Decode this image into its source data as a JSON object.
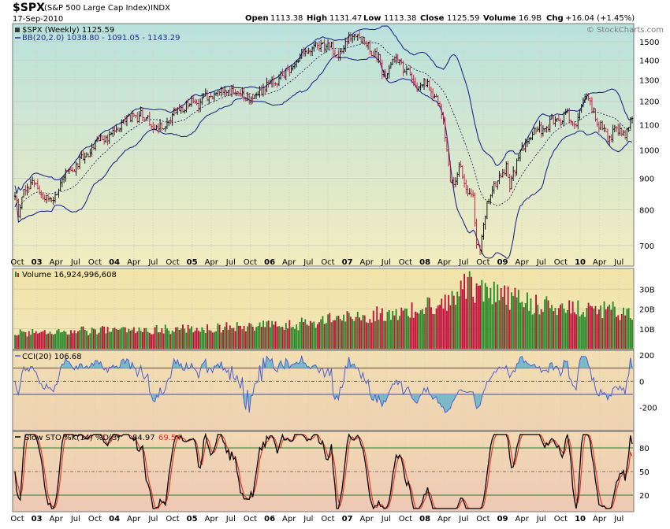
{
  "header": {
    "symbol": "$SPX",
    "name": "(S&P 500 Large Cap Index)",
    "exchange": "INDX",
    "date": "17-Sep-2010",
    "open_label": "Open",
    "open": "1113.38",
    "high_label": "High",
    "high": "1131.47",
    "low_label": "Low",
    "low": "1113.38",
    "close_label": "Close",
    "close": "1125.59",
    "volume_label": "Volume",
    "volume": "16.9B",
    "chg_label": "Chg",
    "chg": "+16.04 (+1.45%)",
    "watermark": "© StockCharts.com"
  },
  "colors": {
    "up": "#2a8a2a",
    "down": "#c0143c",
    "bb": "#1f2a8c",
    "stoch_d": "#e03020",
    "cci_fill": "#78b8c8"
  },
  "chart_data": [
    {
      "type": "line",
      "panel": "price",
      "legend_price": "$SPX (Weekly) 1125.59",
      "legend_bb": "BB(20,2.0) 1038.80 - 1091.05 - 1143.29",
      "y_ticks": [
        700,
        800,
        900,
        1000,
        1100,
        1200,
        1300,
        1400,
        1500
      ],
      "ylim": [
        650,
        1600
      ],
      "log_scale": true,
      "keypoints": [
        [
          0,
          850
        ],
        [
          2,
          780
        ],
        [
          6,
          880
        ],
        [
          12,
          870
        ],
        [
          20,
          820
        ],
        [
          30,
          920
        ],
        [
          45,
          1010
        ],
        [
          55,
          1070
        ],
        [
          65,
          1125
        ],
        [
          72,
          1145
        ],
        [
          78,
          1100
        ],
        [
          85,
          1080
        ],
        [
          95,
          1185
        ],
        [
          100,
          1180
        ],
        [
          115,
          1230
        ],
        [
          125,
          1260
        ],
        [
          135,
          1210
        ],
        [
          147,
          1290
        ],
        [
          155,
          1330
        ],
        [
          160,
          1400
        ],
        [
          165,
          1430
        ],
        [
          172,
          1460
        ],
        [
          179,
          1500
        ],
        [
          183,
          1420
        ],
        [
          188,
          1490
        ],
        [
          195,
          1535
        ],
        [
          203,
          1470
        ],
        [
          208,
          1400
        ],
        [
          210,
          1330
        ],
        [
          213,
          1330
        ],
        [
          218,
          1410
        ],
        [
          223,
          1360
        ],
        [
          230,
          1270
        ],
        [
          234,
          1290
        ],
        [
          238,
          1260
        ],
        [
          242,
          1200
        ],
        [
          245,
          1100
        ],
        [
          247,
          1000
        ],
        [
          249,
          900
        ],
        [
          251,
          880
        ],
        [
          255,
          940
        ],
        [
          258,
          860
        ],
        [
          262,
          830
        ],
        [
          264,
          700
        ],
        [
          266,
          690
        ],
        [
          270,
          810
        ],
        [
          276,
          900
        ],
        [
          281,
          930
        ],
        [
          283,
          880
        ],
        [
          290,
          1010
        ],
        [
          295,
          1050
        ],
        [
          303,
          1090
        ],
        [
          308,
          1110
        ],
        [
          315,
          1140
        ],
        [
          320,
          1100
        ],
        [
          323,
          1160
        ],
        [
          327,
          1210
        ],
        [
          330,
          1180
        ],
        [
          334,
          1090
        ],
        [
          337,
          1070
        ],
        [
          340,
          1050
        ],
        [
          346,
          1080
        ],
        [
          350,
          1070
        ],
        [
          353,
          1125
        ]
      ],
      "x_ticks": [
        "Oct",
        "03",
        "Apr",
        "Jul",
        "Oct",
        "04",
        "Apr",
        "Jul",
        "Oct",
        "05",
        "Apr",
        "Jul",
        "Oct",
        "06",
        "Apr",
        "Jul",
        "Oct",
        "07",
        "Apr",
        "Jul",
        "Oct",
        "08",
        "Apr",
        "Jul",
        "Oct",
        "09",
        "Apr",
        "Jul",
        "Oct",
        "10",
        "Apr",
        "Jul"
      ]
    },
    {
      "type": "bar",
      "panel": "volume",
      "legend": "Volume 16,924,996,608",
      "y_ticks": [
        "10B",
        "20B",
        "30B"
      ],
      "ylim": [
        0,
        40
      ],
      "keypoints": [
        [
          0,
          8
        ],
        [
          40,
          9
        ],
        [
          100,
          10
        ],
        [
          160,
          12
        ],
        [
          190,
          16
        ],
        [
          230,
          19
        ],
        [
          250,
          26
        ],
        [
          255,
          33
        ],
        [
          265,
          30
        ],
        [
          280,
          26
        ],
        [
          300,
          22
        ],
        [
          330,
          20
        ],
        [
          345,
          19
        ],
        [
          353,
          17
        ]
      ]
    },
    {
      "type": "line",
      "panel": "cci",
      "legend": "CCI(20) 106.68",
      "y_ticks": [
        200,
        0,
        -200
      ],
      "ylim": [
        -370,
        230
      ],
      "ref_lines": [
        100,
        -100
      ]
    },
    {
      "type": "line",
      "panel": "stoch",
      "legend_prefix": "Slow STO %K(14) %D(3)",
      "k_value": "84.97",
      "d_value": "69.54",
      "y_ticks": [
        20,
        50,
        80
      ],
      "ylim": [
        0,
        100
      ],
      "ref_lines": [
        80,
        50,
        20
      ]
    }
  ]
}
